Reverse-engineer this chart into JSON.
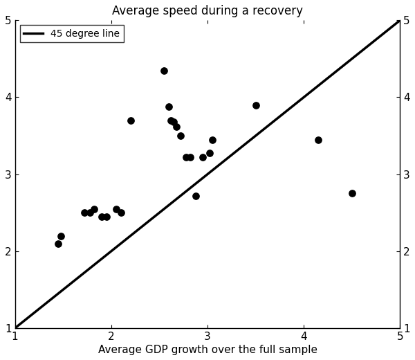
{
  "title": "Average speed during a recovery",
  "xlabel": "Average GDP growth over the full sample",
  "xlim": [
    1,
    5
  ],
  "ylim": [
    1,
    5
  ],
  "xticks": [
    1,
    2,
    3,
    4,
    5
  ],
  "yticks": [
    1,
    2,
    3,
    4,
    5
  ],
  "legend_label": "45 degree line",
  "scatter_x": [
    1.45,
    1.48,
    1.72,
    1.78,
    1.82,
    1.9,
    1.95,
    2.05,
    2.1,
    2.2,
    2.55,
    2.6,
    2.62,
    2.65,
    2.68,
    2.72,
    2.78,
    2.82,
    2.88,
    2.95,
    3.02,
    3.05,
    3.5,
    4.15,
    4.5
  ],
  "scatter_y": [
    2.1,
    2.2,
    2.5,
    2.5,
    2.55,
    2.45,
    2.45,
    2.55,
    2.5,
    3.7,
    4.35,
    3.88,
    3.7,
    3.68,
    3.62,
    3.5,
    3.22,
    3.22,
    2.72,
    3.22,
    3.28,
    3.45,
    3.9,
    3.45,
    2.75
  ],
  "point_color": "#000000",
  "line_color": "#000000",
  "bg_color": "#ffffff",
  "point_size": 45,
  "line_width": 2.5,
  "title_fontsize": 12,
  "label_fontsize": 11,
  "tick_fontsize": 11
}
